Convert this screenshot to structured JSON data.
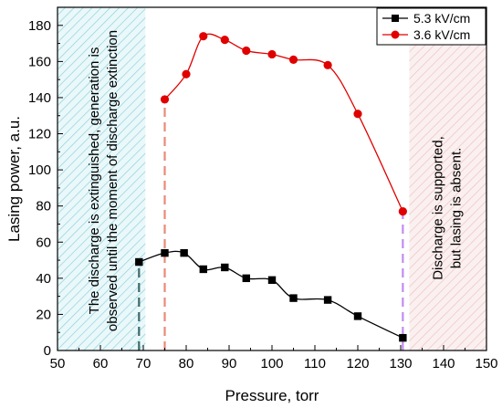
{
  "chart_data": {
    "type": "line",
    "xlabel": "Pressure, torr",
    "ylabel": "Lasing power, a.u.",
    "xlim": [
      50,
      150
    ],
    "ylim": [
      0,
      190
    ],
    "xticks": [
      50,
      60,
      70,
      80,
      90,
      100,
      110,
      120,
      130,
      140,
      150
    ],
    "yticks": [
      0,
      20,
      40,
      60,
      80,
      100,
      120,
      140,
      160,
      180
    ],
    "grid": false,
    "legend_position": "top-right",
    "series": [
      {
        "name": "5.3 kV/cm",
        "color": "#000000",
        "marker": "square",
        "x": [
          69,
          75,
          79.5,
          84,
          89,
          94,
          100,
          105,
          113,
          120,
          130.5
        ],
        "y": [
          49,
          54,
          54,
          45,
          46,
          40,
          39,
          29,
          28,
          19,
          7
        ]
      },
      {
        "name": "3.6 kV/cm",
        "color": "#e00000",
        "marker": "circle",
        "x": [
          75,
          80,
          84,
          89,
          94,
          100,
          105,
          113,
          120,
          130.5
        ],
        "y": [
          139,
          153,
          174,
          172,
          166,
          164,
          161,
          158,
          131,
          77
        ]
      }
    ],
    "regions": [
      {
        "name": "left",
        "x": [
          50,
          70.5
        ],
        "color": "#9fdde6",
        "lines": [
          "The discharge is extinguished, generation is",
          "observed until the moment of discharge extinction"
        ]
      },
      {
        "name": "right",
        "x": [
          132,
          150
        ],
        "color": "#f0c6c6",
        "lines": [
          "Discharge is supported,",
          "but lasing is absent."
        ]
      }
    ],
    "guides": [
      {
        "x": 69,
        "y": 49,
        "color": "#3d6b6a"
      },
      {
        "x": 75,
        "y": 139,
        "color": "#e88a78"
      },
      {
        "x": 130.5,
        "y": 77,
        "color": "#c28cf0"
      }
    ]
  }
}
